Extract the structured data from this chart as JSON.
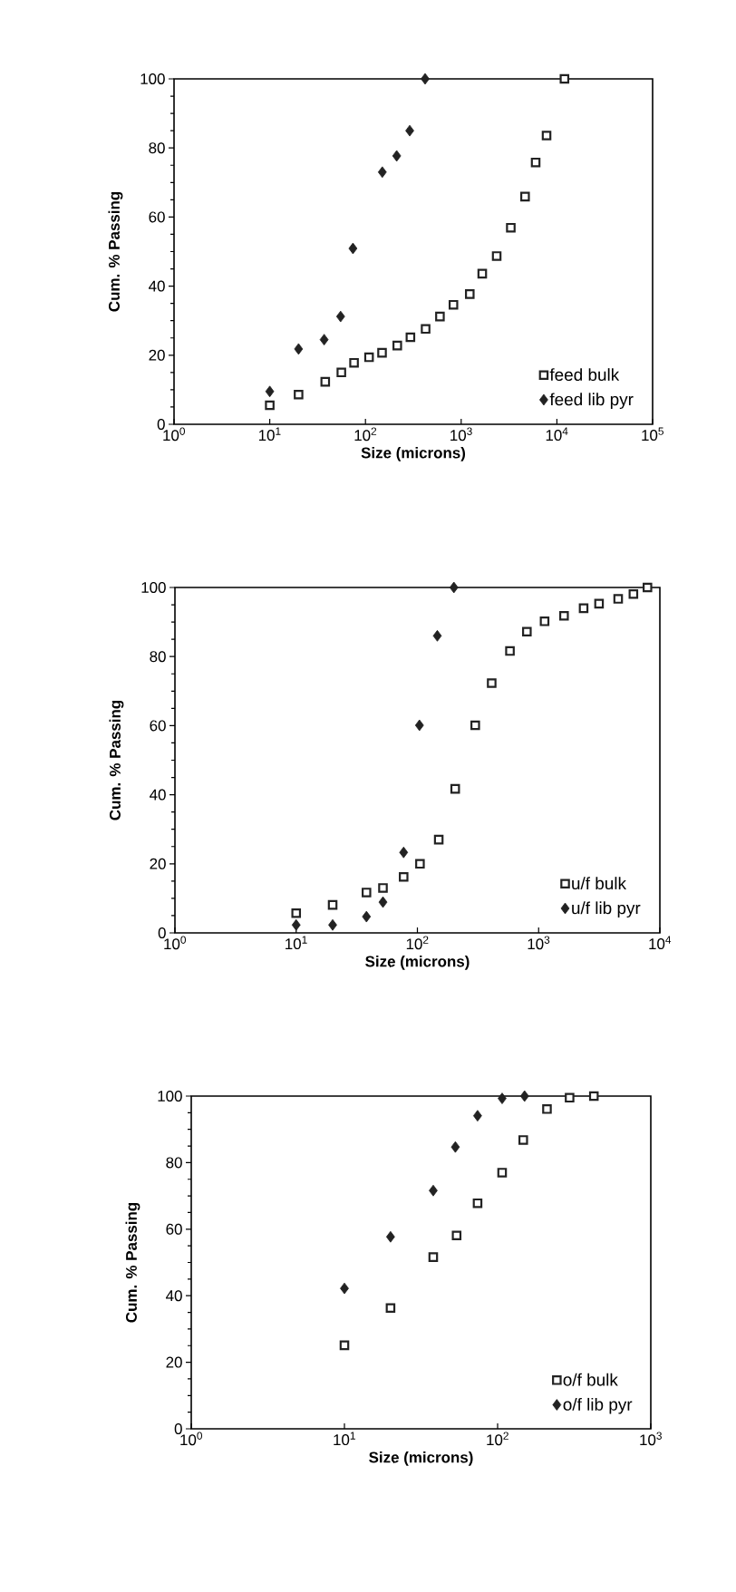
{
  "chart_data": [
    {
      "type": "scatter",
      "xlabel": "Size   (microns)",
      "ylabel": "Cum. % Passing",
      "log": "x",
      "legend": "bottom right",
      "xlim": [
        1,
        100000
      ],
      "xticks": [
        {
          "value": 1,
          "label": "10$^{0}$"
        },
        {
          "value": 10,
          "label": "10$^{1}$"
        },
        {
          "value": 100,
          "label": "10$^{2}$"
        },
        {
          "value": 1000,
          "label": "10$^{3}$"
        },
        {
          "value": 10000,
          "label": "10$^{4}$"
        },
        {
          "value": 100000,
          "label": "10$^{5}$"
        }
      ],
      "ylim": [
        0,
        100
      ],
      "yticks": [
        0,
        20,
        40,
        60,
        80,
        100
      ],
      "series": [
        {
          "name": "feed bulk",
          "color": "#222222",
          "marker": "square",
          "x": [
            10,
            20,
            38,
            56,
            76,
            109,
            149,
            215,
            295,
            425,
            600,
            830,
            1230,
            1660,
            2350,
            3300,
            4650,
            6000,
            7800,
            12000
          ],
          "values": [
            5.5,
            8.6,
            12.3,
            15,
            17.8,
            19.4,
            20.7,
            22.8,
            25.2,
            27.6,
            31.2,
            34.6,
            37.7,
            43.6,
            48.7,
            56.9,
            65.9,
            75.8,
            83.6,
            100
          ]
        },
        {
          "name": "feed lib pyr",
          "color": "#222222",
          "marker": "diamond",
          "x": [
            10,
            20,
            37,
            55,
            74,
            150,
            212,
            290,
            420
          ],
          "values": [
            9.5,
            21.8,
            24.5,
            31.2,
            50.9,
            73,
            77.7,
            85,
            100
          ]
        }
      ]
    },
    {
      "type": "scatter",
      "xlabel": "Size   (microns)",
      "ylabel": "Cum. % Passing",
      "log": "x",
      "legend": "bottom right",
      "xlim": [
        1,
        10000
      ],
      "xticks": [
        {
          "value": 1,
          "label": "10$^{0}$"
        },
        {
          "value": 10,
          "label": "10$^{1}$"
        },
        {
          "value": 100,
          "label": "10$^{2}$"
        },
        {
          "value": 1000,
          "label": "10$^{3}$"
        },
        {
          "value": 10000,
          "label": "10$^{4}$"
        }
      ],
      "ylim": [
        0,
        100
      ],
      "yticks": [
        0,
        20,
        40,
        60,
        80,
        100
      ],
      "series": [
        {
          "name": "u/f bulk",
          "color": "#222222",
          "marker": "square",
          "x": [
            10,
            20,
            38,
            52,
            77,
            105,
            150,
            205,
            300,
            410,
            580,
            800,
            1120,
            1620,
            2350,
            3150,
            4530,
            6050,
            7900
          ],
          "values": [
            5.7,
            8.1,
            11.7,
            13,
            16.2,
            20,
            27,
            41.7,
            60.1,
            72.3,
            81.6,
            87.2,
            90.2,
            91.8,
            94,
            95.3,
            96.7,
            98.1,
            100
          ]
        },
        {
          "name": "u/f lib pyr",
          "color": "#222222",
          "marker": "diamond",
          "x": [
            10,
            20,
            38,
            52,
            77,
            104,
            146,
            200
          ],
          "values": [
            2.3,
            2.3,
            4.7,
            8.9,
            23.3,
            60.1,
            86,
            100
          ]
        }
      ]
    },
    {
      "type": "scatter",
      "xlabel": "Size   (microns)",
      "ylabel": "Cum. % Passing",
      "log": "x",
      "legend": "bottom right",
      "xlim": [
        1,
        1000
      ],
      "xticks": [
        {
          "value": 1,
          "label": "10$^{0}$"
        },
        {
          "value": 10,
          "label": "10$^{1}$"
        },
        {
          "value": 100,
          "label": "10$^{2}$"
        },
        {
          "value": 1000,
          "label": "10$^{3}$"
        }
      ],
      "ylim": [
        0,
        100
      ],
      "yticks": [
        0,
        20,
        40,
        60,
        80,
        100
      ],
      "series": [
        {
          "name": "o/f bulk",
          "color": "#222222",
          "marker": "square",
          "x": [
            10,
            20,
            38,
            54,
            74,
            107,
            147,
            210,
            295,
            425
          ],
          "values": [
            25.1,
            36.3,
            51.6,
            58.1,
            67.8,
            77,
            86.8,
            96.1,
            99.5,
            100
          ]
        },
        {
          "name": "o/f lib pyr",
          "color": "#222222",
          "marker": "diamond",
          "x": [
            10,
            20,
            38,
            53,
            74,
            107,
            150
          ],
          "values": [
            42.2,
            57.7,
            71.6,
            84.7,
            94.1,
            99.3,
            100
          ]
        }
      ]
    }
  ]
}
